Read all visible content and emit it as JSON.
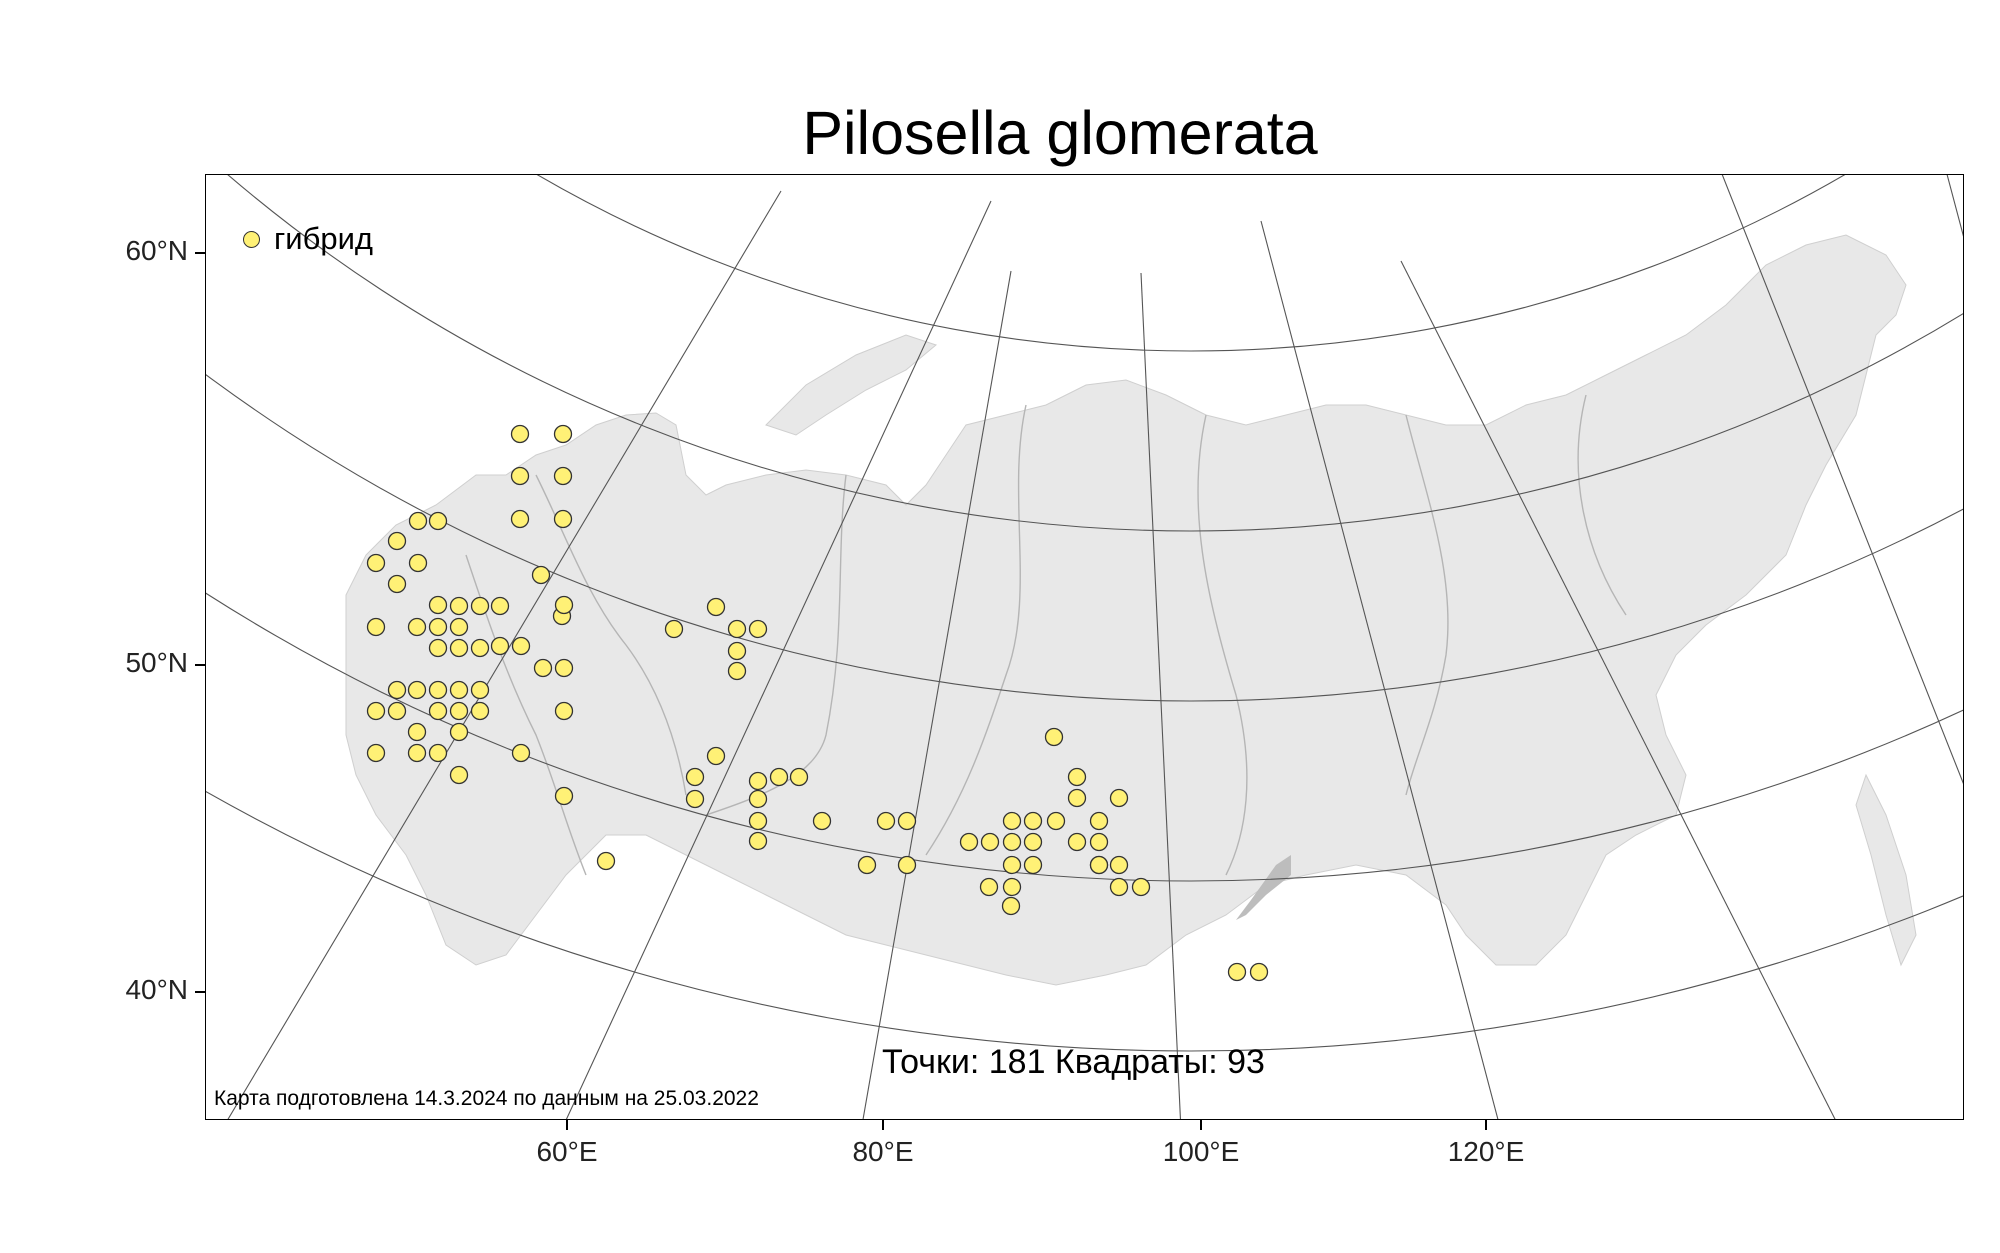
{
  "title": "Pilosella glomerata",
  "legend": {
    "label": "гибрид",
    "color": "#fff176"
  },
  "stats": {
    "text": "Точки: 181 Квадраты: 93"
  },
  "credit": "Карта подготовлена 14.3.2024 по данным на 25.03.2022",
  "axes": {
    "lat_labels": [
      "60°N",
      "50°N",
      "40°N"
    ],
    "lon_labels": [
      "60°E",
      "80°E",
      "100°E",
      "120°E"
    ]
  },
  "colors": {
    "land": "#e8e8e8",
    "graticule": "#555555",
    "rivers": "#b5b5b5",
    "dot_fill": "#fff176",
    "dot_stroke": "#333333"
  },
  "markers": {
    "count_drawn": 94
  }
}
